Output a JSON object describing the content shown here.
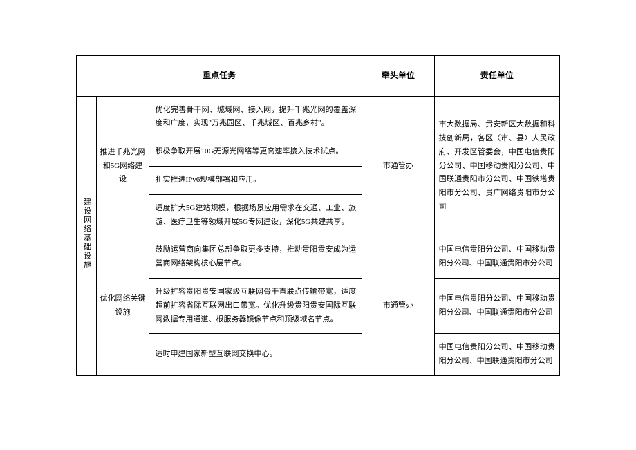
{
  "headers": {
    "task": "重点任务",
    "lead": "牵头单位",
    "responsible": "责任单位"
  },
  "category": "建设网络基础设施",
  "subcategory1": "推进千兆光网和5G网络建设",
  "subcategory2": "优化网络关键设施",
  "tasks": {
    "t1": "优化完善骨干网、城域网、接入网，提升千兆光网的覆盖深度和广度，实现\"万兆园区、千兆城区、百兆乡村\"。",
    "t2": "积极争取开展10G无源光网络等更高速率接入技术试点。",
    "t3": "扎实推进IPv6规模部署和应用。",
    "t4": "适度扩大5G建站规模，根据场景应用需求在交通、工业、旅游、医疗卫生等领域开展5G专网建设，深化5G共建共享。",
    "t5": "鼓励运营商向集团总部争取更多支持，推动贵阳贵安成为运营商网络架构核心层节点。",
    "t6": "升级扩容贵阳贵安国家级互联网骨干直联点传输带宽，适度超前扩容省际互联网出口带宽。优化升级贵阳贵安国际互联网数据专用通道、根服务器镜像节点和顶级域名节点。",
    "t7": "适时申建国家新型互联网交换中心。"
  },
  "lead": {
    "l1": "市通管办",
    "l2": "市通管办"
  },
  "responsible": {
    "r1": "市大数据局、贵安新区大数据和科技创新局，各区〈市、县〉人民政府、开发区管委会，中国电信贵阳分公司、中国移动贵阳分公司、中国联通贵阳市分公司、中国铁塔贵阳市分公司、贵广网络贵阳市分公司",
    "r2": "中国电信贵阳分公司、中国移动贵阳分公司、中国联通贵阳市分公司",
    "r3": "中国电信贵阳分公司、中国移动贵阳分公司、中国联通贵阳市分公司",
    "r4": "中国电信贵阳分公司、中国移动贵阳分公司、中国联通贵阳市分公司"
  }
}
